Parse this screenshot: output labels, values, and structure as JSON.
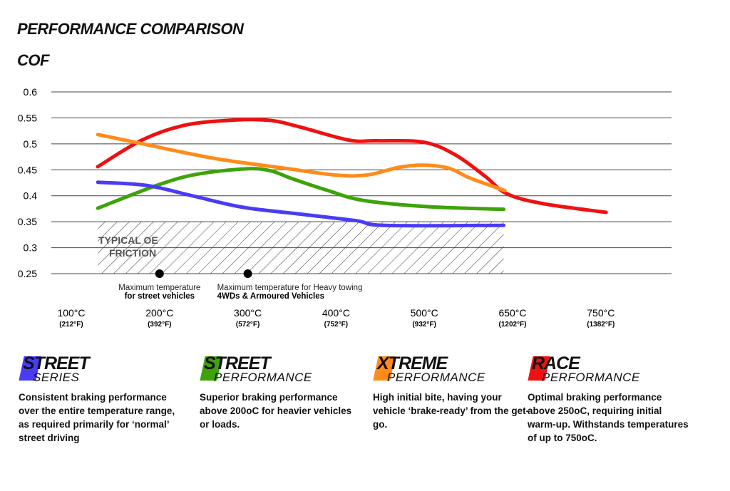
{
  "header": {
    "title": "PERFORMANCE COMPARISON",
    "subtitle": "COF"
  },
  "chart_data": {
    "type": "line",
    "ylabel": "COF",
    "ylim": [
      0.25,
      0.6
    ],
    "yticks": [
      "0.6",
      "0.55",
      "0.5",
      "0.45",
      "0.4",
      "0.35",
      "0.3",
      "0.25"
    ],
    "xticks": [
      {
        "c": "100°C",
        "f": "(212°F)",
        "x": 100
      },
      {
        "c": "200°C",
        "f": "(392°F)",
        "x": 200
      },
      {
        "c": "300°C",
        "f": "(572°F)",
        "x": 300
      },
      {
        "c": "400°C",
        "f": "(752°F)",
        "x": 400
      },
      {
        "c": "500°C",
        "f": "(932°F)",
        "x": 500
      },
      {
        "c": "650°C",
        "f": "(1202°F)",
        "x": 650
      },
      {
        "c": "750°C",
        "f": "(1382°F)",
        "x": 750
      }
    ],
    "grid": true,
    "series": [
      {
        "color": "#ee1111",
        "points": [
          [
            130,
            0.456
          ],
          [
            181,
            0.508
          ],
          [
            229,
            0.536
          ],
          [
            286,
            0.546
          ],
          [
            326,
            0.545
          ],
          [
            358,
            0.533
          ],
          [
            415,
            0.507
          ],
          [
            447,
            0.506
          ],
          [
            500,
            0.503
          ],
          [
            554,
            0.478
          ],
          [
            604,
            0.437
          ],
          [
            640,
            0.404
          ],
          [
            684,
            0.385
          ],
          [
            756,
            0.368
          ]
        ]
      },
      {
        "color": "#ff8c1a",
        "points": [
          [
            130,
            0.518
          ],
          [
            181,
            0.5
          ],
          [
            262,
            0.472
          ],
          [
            342,
            0.453
          ],
          [
            399,
            0.44
          ],
          [
            435,
            0.44
          ],
          [
            472,
            0.455
          ],
          [
            500,
            0.459
          ],
          [
            542,
            0.453
          ],
          [
            578,
            0.434
          ],
          [
            637,
            0.41
          ]
        ]
      },
      {
        "color": "#3ea30a",
        "points": [
          [
            130,
            0.376
          ],
          [
            197,
            0.42
          ],
          [
            241,
            0.441
          ],
          [
            298,
            0.452
          ],
          [
            326,
            0.448
          ],
          [
            350,
            0.433
          ],
          [
            391,
            0.41
          ],
          [
            431,
            0.391
          ],
          [
            506,
            0.379
          ],
          [
            635,
            0.374
          ]
        ]
      },
      {
        "color": "#4a3cf5",
        "points": [
          [
            130,
            0.426
          ],
          [
            185,
            0.42
          ],
          [
            237,
            0.4
          ],
          [
            294,
            0.378
          ],
          [
            358,
            0.365
          ],
          [
            423,
            0.352
          ],
          [
            455,
            0.343
          ],
          [
            635,
            0.343
          ]
        ]
      }
    ],
    "region": {
      "label_line1": "TYPICAL OE",
      "label_line2": "FRICTION",
      "x": [
        130,
        635
      ],
      "y": [
        0.25,
        0.35
      ]
    },
    "annotations": [
      {
        "x": 200,
        "line1": "Maximum temperature",
        "line2": "for street vehicles"
      },
      {
        "x": 300,
        "line1": "Maximum temperature for Heavy towing",
        "line2": "4WDs & Armoured Vehicles"
      }
    ]
  },
  "products": [
    {
      "color": "#4a3cf5",
      "l1": "STREET",
      "l2": "SERIES",
      "desc": "Consistent braking performance over the entire temperature range, as required primarily for ‘normal’ street driving"
    },
    {
      "color": "#3ea30a",
      "l1": "STREET",
      "l2": "PERFORMANCE",
      "desc": "Superior braking performance above 200oC for heavier vehicles or loads."
    },
    {
      "color": "#ff8c1a",
      "l1": "XTREME",
      "l2": "PERFORMANCE",
      "desc": "High initial bite, having your vehicle ‘brake-ready’ from the get-go."
    },
    {
      "color": "#ee1111",
      "l1": "RACE",
      "l2": "PERFORMANCE",
      "desc": "Optimal braking performance above 250oC, requiring initial warm-up. Withstands temperatures of up to 750oC."
    }
  ]
}
